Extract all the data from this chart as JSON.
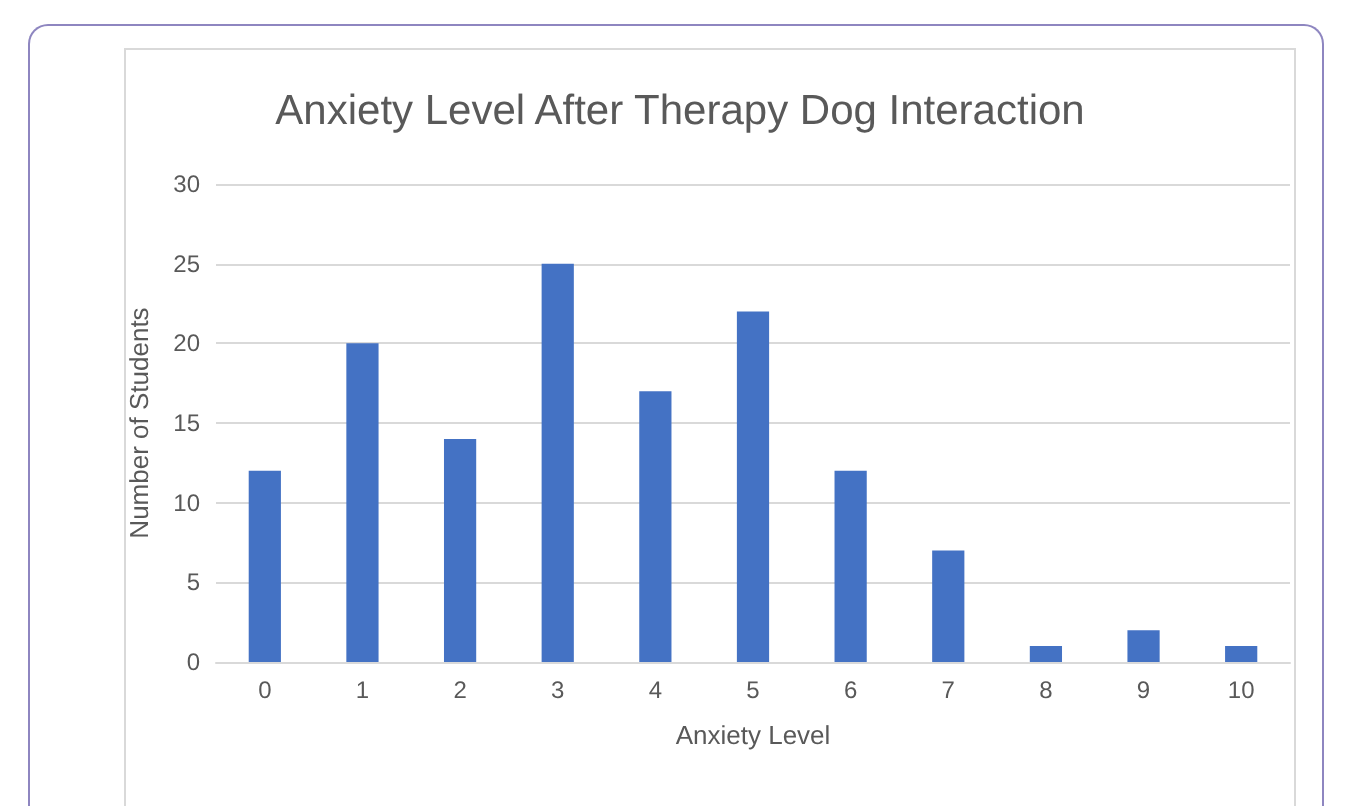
{
  "chart_data": {
    "type": "bar",
    "title": "Anxiety Level After Therapy Dog Interaction",
    "xlabel": "Anxiety Level",
    "ylabel": "Number of Students",
    "categories": [
      "0",
      "1",
      "2",
      "3",
      "4",
      "5",
      "6",
      "7",
      "8",
      "9",
      "10"
    ],
    "values": [
      12,
      20,
      14,
      25,
      17,
      22,
      12,
      7,
      1,
      2,
      1
    ],
    "color": "#4472c4",
    "ylim": [
      0,
      30
    ],
    "yticks": [
      0,
      5,
      10,
      15,
      20,
      25,
      30
    ],
    "grid": "y"
  }
}
